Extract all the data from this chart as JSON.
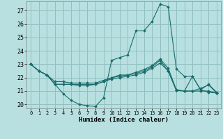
{
  "xlabel": "Humidex (Indice chaleur)",
  "bg_color": "#b8e0e0",
  "grid_color": "#90c0c0",
  "line_color": "#1a6b6b",
  "xlim": [
    -0.5,
    23.5
  ],
  "ylim": [
    19.7,
    27.7
  ],
  "yticks": [
    20,
    21,
    22,
    23,
    24,
    25,
    26,
    27
  ],
  "xticks": [
    0,
    1,
    2,
    3,
    4,
    5,
    6,
    7,
    8,
    9,
    10,
    11,
    12,
    13,
    14,
    15,
    16,
    17,
    18,
    19,
    20,
    21,
    22,
    23
  ],
  "series": [
    [
      23.0,
      22.5,
      22.2,
      21.5,
      20.8,
      20.3,
      20.0,
      19.9,
      19.85,
      20.5,
      23.3,
      23.5,
      23.7,
      25.5,
      25.5,
      26.2,
      27.5,
      27.3,
      22.65,
      22.1,
      22.1,
      21.1,
      21.5,
      20.9
    ],
    [
      23.0,
      22.5,
      22.2,
      21.5,
      21.5,
      21.5,
      21.5,
      21.5,
      21.5,
      21.7,
      22.0,
      22.2,
      22.2,
      22.4,
      22.6,
      22.9,
      23.4,
      22.7,
      21.1,
      21.0,
      22.1,
      21.1,
      20.9,
      20.85
    ],
    [
      23.0,
      22.5,
      22.2,
      21.5,
      21.5,
      21.5,
      21.4,
      21.4,
      21.5,
      21.7,
      21.9,
      22.0,
      22.1,
      22.2,
      22.4,
      22.7,
      23.1,
      22.5,
      21.05,
      21.0,
      21.0,
      21.0,
      21.0,
      20.85
    ],
    [
      23.0,
      22.5,
      22.2,
      21.7,
      21.7,
      21.6,
      21.6,
      21.6,
      21.6,
      21.8,
      22.0,
      22.1,
      22.2,
      22.3,
      22.5,
      22.8,
      23.3,
      22.5,
      21.05,
      21.0,
      21.0,
      21.2,
      21.45,
      20.85
    ]
  ]
}
